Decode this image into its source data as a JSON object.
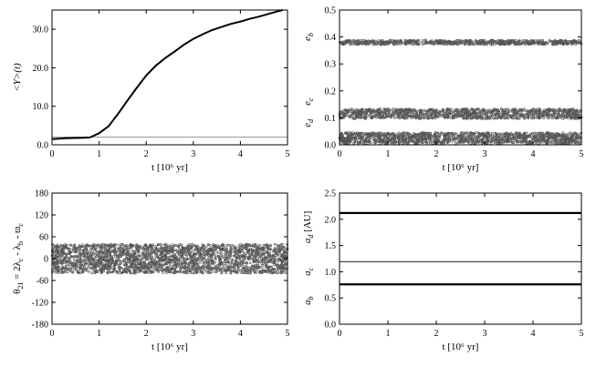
{
  "colors": {
    "ink": "#000000",
    "scatter": "#555555",
    "ref_line": "#9a9a9a",
    "background": "#ffffff"
  },
  "chart_data": [
    {
      "id": "p1",
      "type": "line",
      "title": "",
      "xlabel": "t [10⁶ yr]",
      "ylabel": "<Y>(t)",
      "xlim": [
        0,
        5
      ],
      "ylim": [
        0,
        35
      ],
      "xticks": [
        "0",
        "1",
        "2",
        "3",
        "4",
        "5"
      ],
      "yticks": [
        "0.0",
        "10.0",
        "20.0",
        "30.0"
      ],
      "xtick_values": [
        0,
        1,
        2,
        3,
        4,
        5
      ],
      "ytick_values": [
        0,
        10,
        20,
        30
      ],
      "reference_line": {
        "y": 2
      },
      "series": [
        {
          "x": [
            0,
            0.3,
            0.6,
            0.8,
            1.0,
            1.2,
            1.4,
            1.6,
            1.8,
            2.0,
            2.2,
            2.4,
            2.6,
            2.8,
            3.0,
            3.2,
            3.4,
            3.6,
            3.8,
            4.0,
            4.2,
            4.4,
            4.6,
            4.8,
            4.9
          ],
          "y": [
            1.5,
            1.7,
            1.8,
            1.9,
            3.0,
            4.8,
            8.0,
            11.5,
            14.8,
            18.0,
            20.5,
            22.5,
            24.2,
            26.0,
            27.5,
            28.7,
            29.8,
            30.6,
            31.4,
            32.0,
            32.7,
            33.3,
            34.0,
            34.7,
            35.0
          ]
        }
      ],
      "grid": false
    },
    {
      "id": "p2",
      "type": "scatter",
      "title": "",
      "xlabel": "t [10⁶ yr]",
      "ylabel_parts": [
        "e",
        "d",
        "e",
        "c",
        "e",
        "b"
      ],
      "xlim": [
        0,
        5
      ],
      "ylim": [
        0,
        0.5
      ],
      "xticks": [
        "0",
        "1",
        "2",
        "3",
        "4",
        "5"
      ],
      "yticks": [
        "0.0",
        "0.1",
        "0.2",
        "0.3",
        "0.4",
        "0.5"
      ],
      "xtick_values": [
        0,
        1,
        2,
        3,
        4,
        5
      ],
      "ytick_values": [
        0,
        0.1,
        0.2,
        0.3,
        0.4,
        0.5
      ],
      "bands": [
        {
          "center": 0.38,
          "half_width": 0.008
        },
        {
          "center": 0.115,
          "half_width": 0.018
        },
        {
          "center": 0.025,
          "half_width": 0.02
        }
      ],
      "grid": false
    },
    {
      "id": "p3",
      "type": "scatter",
      "title": "",
      "xlabel": "t [10⁶ yr]",
      "ylabel_parts": [
        "θ",
        "21",
        " = 2λ",
        "c",
        " - λ",
        "b",
        " - ϖ",
        "c"
      ],
      "xlim": [
        0,
        5
      ],
      "ylim": [
        -180,
        180
      ],
      "xticks": [
        "0",
        "1",
        "2",
        "3",
        "4",
        "5"
      ],
      "yticks": [
        "-180",
        "-120",
        "-60",
        "0",
        "60",
        "120",
        "180"
      ],
      "xtick_values": [
        0,
        1,
        2,
        3,
        4,
        5
      ],
      "ytick_values": [
        -180,
        -120,
        -60,
        0,
        60,
        120,
        180
      ],
      "bands": [
        {
          "center": 0,
          "half_width": 40
        }
      ],
      "grid": false
    },
    {
      "id": "p4",
      "type": "line",
      "title": "",
      "xlabel": "t [10⁶ yr]",
      "ylabel_parts": [
        "a",
        "b",
        "a",
        "c",
        "a",
        "d",
        " [AU]"
      ],
      "xlim": [
        0,
        5
      ],
      "ylim": [
        0,
        2.5
      ],
      "xticks": [
        "0",
        "1",
        "2",
        "3",
        "4",
        "5"
      ],
      "yticks": [
        "0.0",
        "0.5",
        "1.0",
        "1.5",
        "2.0",
        "2.5"
      ],
      "xtick_values": [
        0,
        1,
        2,
        3,
        4,
        5
      ],
      "ytick_values": [
        0,
        0.5,
        1.0,
        1.5,
        2.0,
        2.5
      ],
      "series": [
        {
          "x": [
            0,
            5
          ],
          "y": [
            2.12,
            2.12
          ],
          "width": 2.2
        },
        {
          "x": [
            0,
            5
          ],
          "y": [
            1.19,
            1.19
          ],
          "width": 1.4
        },
        {
          "x": [
            0,
            5
          ],
          "y": [
            0.76,
            0.76
          ],
          "width": 2.2
        }
      ],
      "grid": false
    }
  ]
}
